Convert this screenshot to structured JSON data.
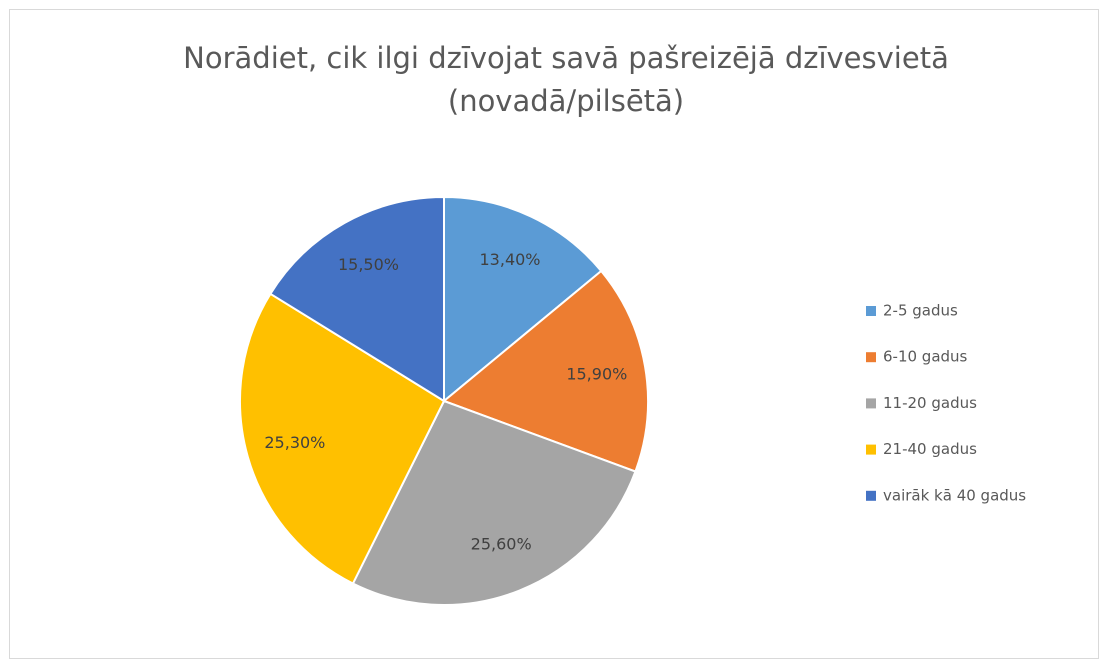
{
  "chart_data": {
    "type": "pie",
    "title": [
      "Norādiet, cik ilgi dzīvojat savā pašreizējā dzīvesvietā",
      "(novadā/pilsētā)"
    ],
    "categories": [
      "2-5 gadus",
      "6-10 gadus",
      "11-20 gadus",
      "21-40 gadus",
      "vairāk kā 40 gadus"
    ],
    "values": [
      13.4,
      15.9,
      25.6,
      25.3,
      15.5
    ],
    "value_labels": [
      "13,40%",
      "15,90%",
      "25,60%",
      "25,30%",
      "15,50%"
    ],
    "colors": [
      "#5b9bd5",
      "#ed7d31",
      "#a5a5a5",
      "#ffc000",
      "#4472c4"
    ],
    "legend": "right"
  }
}
